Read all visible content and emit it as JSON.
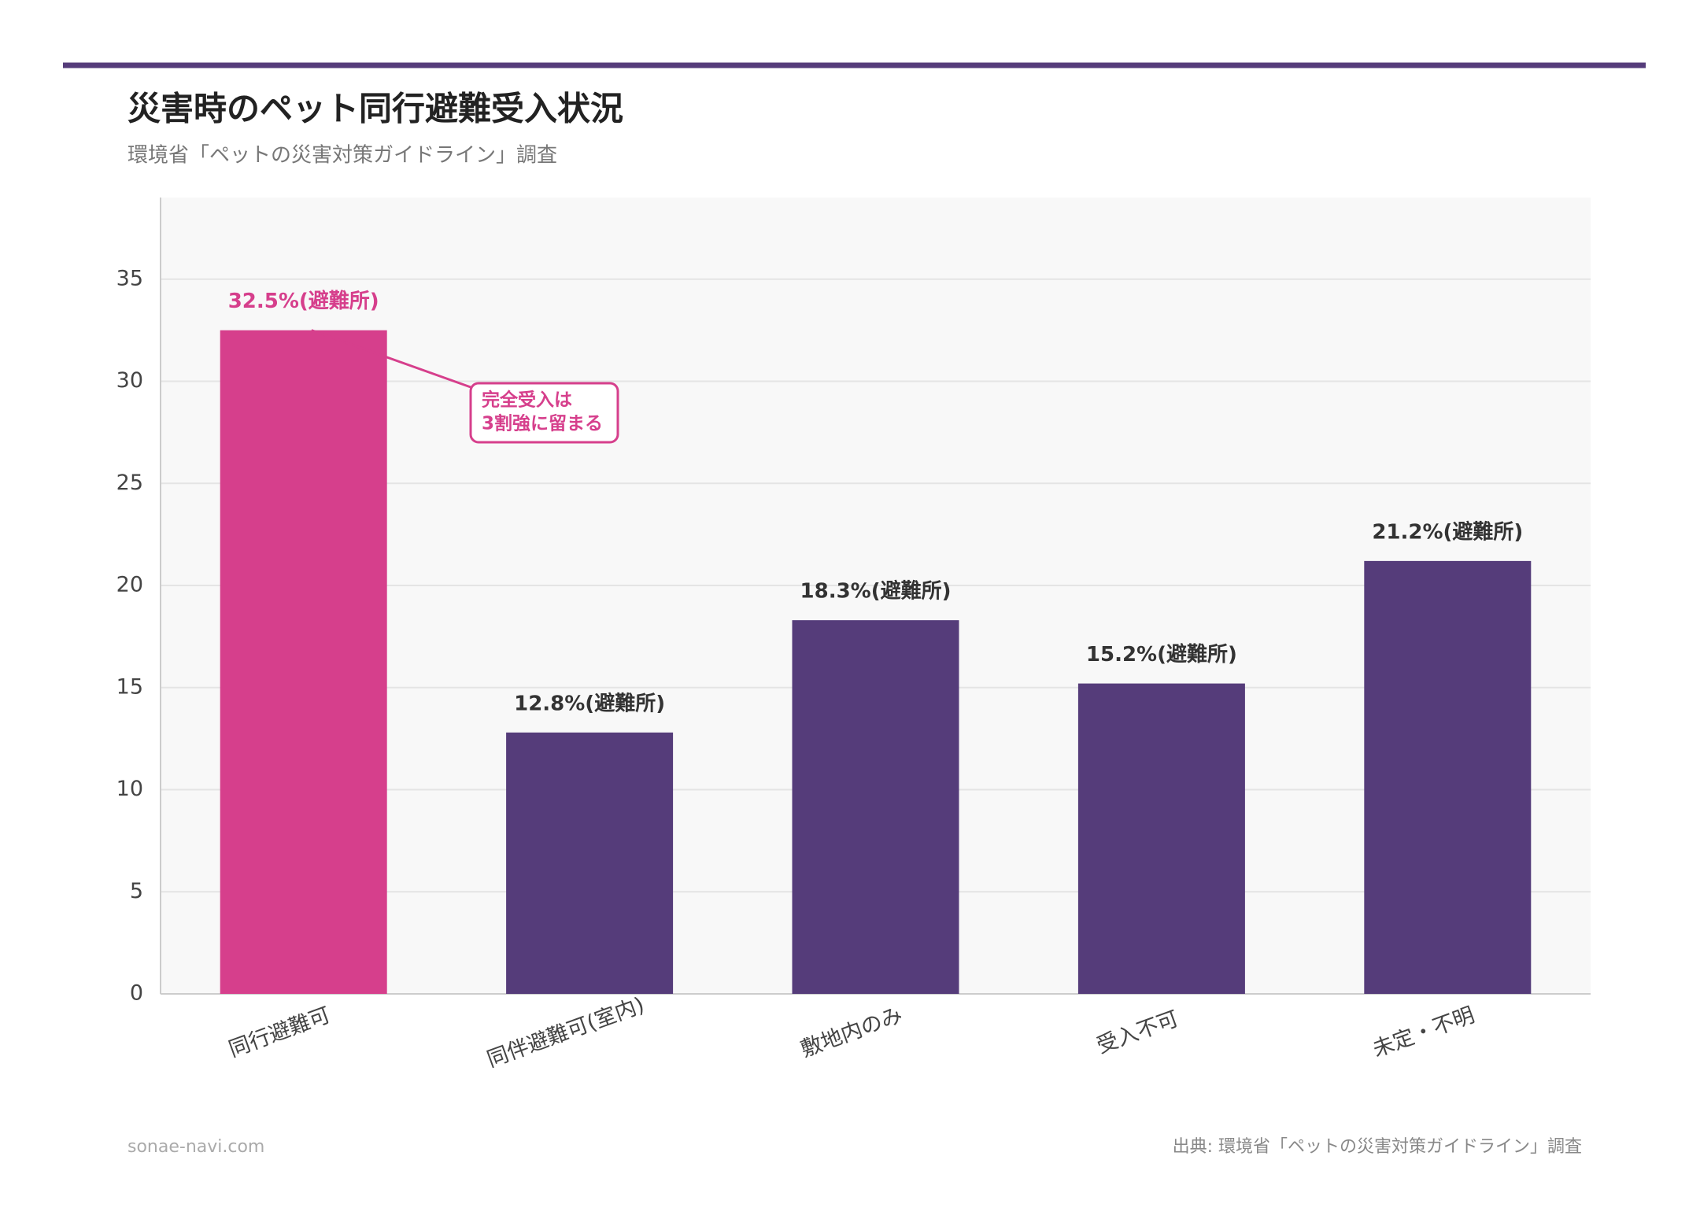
{
  "chart_data": {
    "type": "bar",
    "title": "災害時のペット同行避難受入状況",
    "subtitle": "環境省「ペットの災害対策ガイドライン」調査",
    "categories": [
      "同行避難可",
      "同伴避難可(室内)",
      "敷地内のみ",
      "受入不可",
      "未定・不明"
    ],
    "values": [
      32.5,
      12.8,
      18.3,
      15.2,
      21.2
    ],
    "value_labels": [
      "32.5%(避難所)",
      "12.8%(避難所)",
      "18.3%(避難所)",
      "15.2%(避難所)",
      "21.2%(避難所)"
    ],
    "colors": [
      "#d63f8c",
      "#553c7a",
      "#553c7a",
      "#553c7a",
      "#553c7a"
    ],
    "ylim": [
      0,
      39
    ],
    "yticks": [
      0,
      5,
      10,
      15,
      20,
      25,
      30,
      35
    ],
    "grid": true,
    "annotation": {
      "lines": [
        "完全受入は",
        "3割強に留まる"
      ],
      "color": "#d63f8c"
    },
    "footer_left": "sonae-navi.com",
    "footer_right": "出典: 環境省「ペットの災害対策ガイドライン」調査"
  }
}
